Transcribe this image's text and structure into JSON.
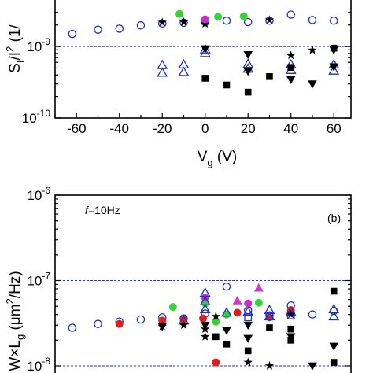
{
  "chart_data": [
    {
      "type": "scatter",
      "ylabel_parts": [
        "S",
        "I",
        "/I",
        "2",
        " (1/"
      ],
      "xlabel_parts": [
        "V",
        "g",
        " (V)"
      ],
      "x_ticks": [
        "-60",
        "-40",
        "-20",
        "0",
        "20",
        "40",
        "60"
      ],
      "y_ticks": [
        {
          "base": "10",
          "exp": "-9",
          "value": 1e-09
        },
        {
          "base": "10",
          "exp": "-10",
          "value": 1e-10
        }
      ],
      "xlim": [
        -70,
        68
      ],
      "ylim": [
        1e-10,
        3.3e-09
      ],
      "yscale": "log",
      "reference_lines": [
        1e-09
      ],
      "series": [
        {
          "marker": "circle-open",
          "color": "#1f2fbf",
          "points": [
            [
              -62,
              1.5e-09
            ],
            [
              -50,
              1.72e-09
            ],
            [
              -40,
              1.78e-09
            ],
            [
              -30,
              1.98e-09
            ],
            [
              -20,
              2.1e-09
            ],
            [
              -10,
              2.15e-09
            ],
            [
              0,
              2.2e-09
            ],
            [
              10,
              2.3e-09
            ],
            [
              20,
              2.2e-09
            ],
            [
              30,
              2.3e-09
            ],
            [
              40,
              2.8e-09
            ],
            [
              50,
              2.35e-09
            ],
            [
              60,
              2.3e-09
            ]
          ]
        },
        {
          "marker": "star",
          "color": "#000000",
          "points": [
            [
              -20,
              2.18e-09
            ],
            [
              -10,
              2.2e-09
            ],
            [
              0,
              2.08e-09
            ],
            [
              30,
              2.35e-09
            ],
            [
              40,
              7.5e-10
            ],
            [
              50,
              8.9e-10
            ]
          ]
        },
        {
          "marker": "circle-filled",
          "color": "#36d236",
          "points": [
            [
              -12,
              2.85e-09
            ],
            [
              6,
              2.6e-09
            ],
            [
              18,
              2.65e-09
            ]
          ]
        },
        {
          "marker": "circle-filled",
          "color": "#c832c8",
          "points": [
            [
              0,
              2.4e-09
            ]
          ]
        },
        {
          "marker": "triangle-up-open",
          "color": "#1f2fbf",
          "points": [
            [
              -20,
              5.5e-10
            ],
            [
              -10,
              5.6e-10
            ],
            [
              -20,
              4.3e-10
            ],
            [
              -10,
              4.4e-10
            ],
            [
              0,
              9.1e-10
            ],
            [
              0,
              8.1e-10
            ],
            [
              20,
              5.7e-10
            ],
            [
              20,
              4.9e-10
            ],
            [
              40,
              5.6e-10
            ],
            [
              40,
              4.7e-10
            ],
            [
              60,
              5.6e-10
            ],
            [
              60,
              4.6e-10
            ]
          ]
        },
        {
          "marker": "triangle-down-filled",
          "color": "#000000",
          "points": [
            [
              0,
              9.3e-10
            ],
            [
              20,
              7.7e-10
            ],
            [
              20,
              4.5e-10
            ],
            [
              40,
              3.45e-10
            ],
            [
              50,
              3e-10
            ],
            [
              60,
              9e-10
            ],
            [
              60,
              5.2e-10
            ]
          ]
        },
        {
          "marker": "square-filled",
          "color": "#000000",
          "points": [
            [
              0,
              3.6e-10
            ],
            [
              10,
              2.9e-10
            ],
            [
              20,
              2.3e-10
            ],
            [
              30,
              3.8e-10
            ],
            [
              40,
              5.1e-10
            ],
            [
              60,
              9.5e-10
            ]
          ]
        }
      ]
    },
    {
      "type": "scatter",
      "ylabel_parts": [
        "W",
        "×",
        "L",
        "g",
        " (",
        "μ",
        "m",
        "2",
        "/Hz)"
      ],
      "annotation_parts": [
        "f",
        "=10Hz"
      ],
      "panel_label": "(b)",
      "y_ticks": [
        {
          "base": "10",
          "exp": "-6",
          "value": 1e-06
        },
        {
          "base": "10",
          "exp": "-7",
          "value": 1e-07
        },
        {
          "base": "10",
          "exp": "-8",
          "value": 1e-08
        }
      ],
      "xlim": [
        -70,
        68
      ],
      "ylim": [
        1e-08,
        1e-06
      ],
      "yscale": "log",
      "reference_lines": [
        1e-07,
        1e-08
      ],
      "series": [
        {
          "marker": "circle-open",
          "color": "#1f2fbf",
          "points": [
            [
              -62,
              2.8e-08
            ],
            [
              -50,
              3.1e-08
            ],
            [
              -40,
              3.3e-08
            ],
            [
              -30,
              3.5e-08
            ],
            [
              -20,
              3.7e-08
            ],
            [
              -10,
              3.6e-08
            ],
            [
              0,
              4.1e-08
            ],
            [
              10,
              8.5e-08
            ],
            [
              20,
              4.5e-08
            ],
            [
              30,
              3.9e-08
            ],
            [
              40,
              5.1e-08
            ],
            [
              50,
              4e-08
            ],
            [
              60,
              4.4e-08
            ]
          ]
        },
        {
          "marker": "circle-filled",
          "color": "#e01e1e",
          "points": [
            [
              -40,
              3.1e-08
            ],
            [
              -20,
              3.4e-08
            ],
            [
              -10,
              3.5e-08
            ],
            [
              -1,
              3.6e-08
            ],
            [
              5,
              1.1e-08
            ],
            [
              15,
              4.2e-08
            ],
            [
              30,
              3.7e-08
            ],
            [
              40,
              4.5e-08
            ]
          ]
        },
        {
          "marker": "circle-filled",
          "color": "#36d236",
          "points": [
            [
              -15,
              4.9e-08
            ],
            [
              0,
              5.4e-08
            ],
            [
              5,
              3.3e-08
            ],
            [
              10,
              4e-08
            ],
            [
              25,
              5.5e-08
            ]
          ]
        },
        {
          "marker": "circle-filled",
          "color": "#c832c8",
          "points": [
            [
              0,
              6.3e-08
            ],
            [
              20,
              5.4e-08
            ]
          ]
        },
        {
          "marker": "triangle-up-filled",
          "color": "#d235d2",
          "points": [
            [
              15,
              5.8e-08
            ],
            [
              25,
              8.2e-08
            ]
          ]
        },
        {
          "marker": "triangle-up-open",
          "color": "#1f2fbf",
          "points": [
            [
              -10,
              3.4e-08
            ],
            [
              0,
              7.2e-08
            ],
            [
              0,
              5.7e-08
            ],
            [
              0,
              4.6e-08
            ],
            [
              10,
              4.2e-08
            ],
            [
              20,
              4.3e-08
            ],
            [
              30,
              4.5e-08
            ],
            [
              30,
              3.8e-08
            ],
            [
              40,
              4.3e-08
            ],
            [
              60,
              4.6e-08
            ],
            [
              60,
              3.8e-08
            ]
          ]
        },
        {
          "marker": "square-open",
          "color": "#1f2fbf",
          "points": [
            [
              20,
              3.7e-08
            ],
            [
              30,
              3.8e-08
            ],
            [
              40,
              3.9e-08
            ]
          ]
        },
        {
          "marker": "star",
          "color": "#000000",
          "points": [
            [
              -20,
              2.9e-08
            ],
            [
              -10,
              3e-08
            ],
            [
              0,
              2.7e-08
            ],
            [
              0,
              2.2e-08
            ],
            [
              5,
              3.8e-08
            ],
            [
              20,
              1.1e-08
            ],
            [
              30,
              1e-08
            ],
            [
              40,
              4e-08
            ]
          ]
        },
        {
          "marker": "triangle-down-filled",
          "color": "#000000",
          "points": [
            [
              -20,
              2.9e-08
            ],
            [
              0,
              3e-08
            ],
            [
              10,
              2.6e-08
            ],
            [
              20,
              3e-08
            ],
            [
              20,
              2.1e-08
            ],
            [
              40,
              2.2e-08
            ],
            [
              50,
              1e-08
            ],
            [
              60,
              1.7e-08
            ]
          ]
        },
        {
          "marker": "square-filled",
          "color": "#000000",
          "points": [
            [
              5,
              2.2e-08
            ],
            [
              10,
              1.8e-08
            ],
            [
              20,
              1.5e-08
            ],
            [
              30,
              2.8e-08
            ],
            [
              40,
              2.7e-08
            ],
            [
              40,
              2e-08
            ],
            [
              60,
              7.5e-08
            ],
            [
              60,
              1.1e-08
            ]
          ]
        }
      ]
    }
  ]
}
